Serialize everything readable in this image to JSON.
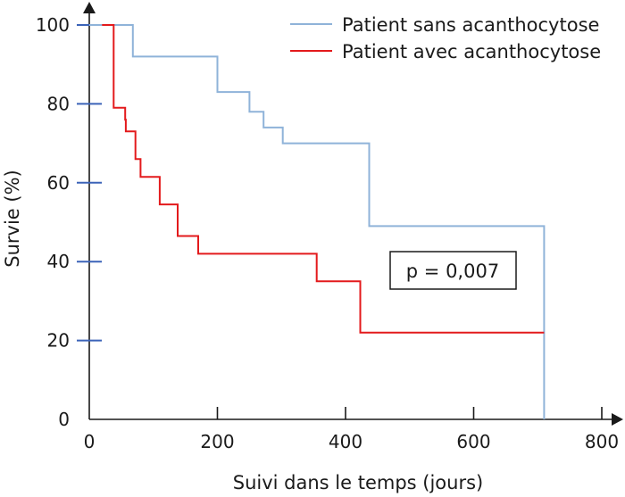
{
  "chart_data": {
    "type": "line",
    "step": true,
    "title": "",
    "xlabel": "Suivi dans le temps (jours)",
    "ylabel": "Survie (%)",
    "xlim": [
      0,
      800
    ],
    "ylim": [
      0,
      100
    ],
    "xticks": [
      0,
      200,
      400,
      600,
      800
    ],
    "yticks": [
      0,
      20,
      40,
      60,
      80,
      100
    ],
    "grid": false,
    "legend_position": "top-right",
    "series": [
      {
        "name": "Patient sans acanthocytose",
        "color": "#8fb3d9",
        "x": [
          0,
          68,
          200,
          250,
          272,
          302,
          437,
          710,
          710
        ],
        "y": [
          100,
          92,
          83,
          78,
          74,
          70,
          49,
          49,
          0
        ]
      },
      {
        "name": "Patient avec acanthocytose",
        "color": "#e31a1c",
        "x": [
          20,
          38,
          56,
          57,
          72,
          80,
          110,
          138,
          170,
          355,
          423,
          710
        ],
        "y": [
          100,
          79,
          76,
          73,
          66,
          61.5,
          54.5,
          46.5,
          42,
          35,
          22,
          22
        ]
      }
    ],
    "annotations": [
      {
        "text": "p = 0,007",
        "x": 510,
        "y": 39,
        "boxed": true
      }
    ]
  }
}
